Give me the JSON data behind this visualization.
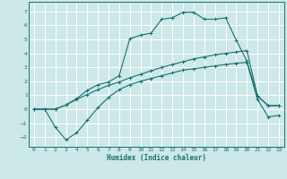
{
  "xlabel": "Humidex (Indice chaleur)",
  "bg_color": "#cce8e8",
  "grid_color": "#ffffff",
  "line_color": "#1a7070",
  "xlim": [
    -0.5,
    23.5
  ],
  "ylim": [
    -2.7,
    7.7
  ],
  "xticks": [
    0,
    1,
    2,
    3,
    4,
    5,
    6,
    7,
    8,
    9,
    10,
    11,
    12,
    13,
    14,
    15,
    16,
    17,
    18,
    19,
    20,
    21,
    22,
    23
  ],
  "yticks": [
    -2,
    -1,
    0,
    1,
    2,
    3,
    4,
    5,
    6,
    7
  ],
  "line1_x": [
    0,
    1,
    2,
    3,
    4,
    5,
    6,
    7,
    8,
    9,
    10,
    11,
    12,
    13,
    14,
    15,
    16,
    17,
    18,
    19,
    20,
    21,
    22,
    23
  ],
  "line1_y": [
    0.0,
    0.0,
    -1.3,
    -2.2,
    -1.7,
    -0.8,
    0.1,
    0.85,
    1.4,
    1.75,
    2.0,
    2.2,
    2.4,
    2.6,
    2.8,
    2.9,
    3.0,
    3.1,
    3.2,
    3.3,
    3.35,
    0.7,
    -0.55,
    -0.45
  ],
  "line2_x": [
    0,
    1,
    2,
    3,
    4,
    5,
    6,
    7,
    8,
    9,
    10,
    11,
    12,
    13,
    14,
    15,
    16,
    17,
    18,
    19,
    20,
    21,
    22,
    23
  ],
  "line2_y": [
    0.0,
    0.0,
    0.0,
    0.3,
    0.7,
    1.05,
    1.4,
    1.7,
    1.95,
    2.25,
    2.5,
    2.75,
    3.0,
    3.2,
    3.4,
    3.6,
    3.75,
    3.9,
    4.0,
    4.1,
    4.2,
    0.95,
    0.25,
    0.25
  ],
  "line3_x": [
    0,
    1,
    2,
    3,
    4,
    5,
    6,
    7,
    8,
    9,
    10,
    11,
    12,
    13,
    14,
    15,
    16,
    17,
    18,
    19,
    20,
    21,
    22,
    23
  ],
  "line3_y": [
    0.0,
    0.0,
    0.0,
    0.3,
    0.75,
    1.35,
    1.75,
    1.95,
    2.4,
    5.05,
    5.3,
    5.45,
    6.45,
    6.55,
    6.95,
    6.95,
    6.45,
    6.45,
    6.55,
    4.95,
    3.45,
    0.95,
    0.25,
    0.25
  ]
}
